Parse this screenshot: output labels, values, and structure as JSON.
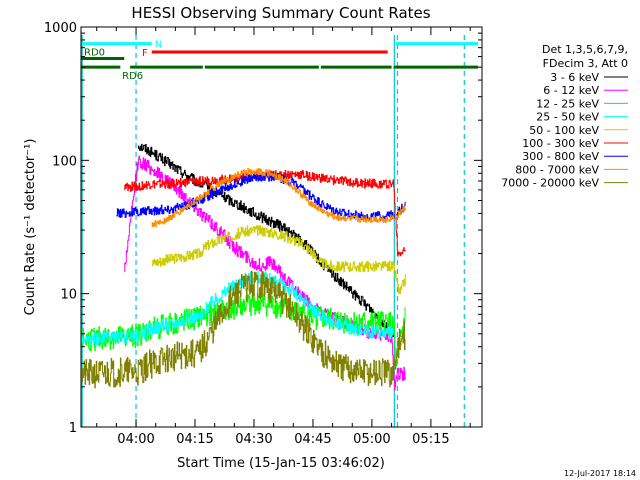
{
  "chart_data": {
    "type": "line",
    "title": "HESSI Observing Summary Count Rates",
    "xlabel": "Start Time (15-Jan-15 03:46:02)",
    "ylabel": "Count Rate (s⁻¹ detector⁻¹)",
    "y_scale": "log",
    "ylim": [
      1,
      1000
    ],
    "xlim_minutes": [
      226,
      328
    ],
    "x_ticks": [
      {
        "minutes": 240,
        "label": "04:00"
      },
      {
        "minutes": 255,
        "label": "04:15"
      },
      {
        "minutes": 270,
        "label": "04:30"
      },
      {
        "minutes": 285,
        "label": "04:45"
      },
      {
        "minutes": 300,
        "label": "05:00"
      },
      {
        "minutes": 315,
        "label": "05:15"
      }
    ],
    "y_ticks": [
      {
        "value": 1,
        "label": "1"
      },
      {
        "value": 10,
        "label": "10"
      },
      {
        "value": 100,
        "label": "100"
      },
      {
        "value": 1000,
        "label": "1000"
      }
    ],
    "legend": {
      "placement": "right",
      "header": [
        "Det 1,3,5,6,7,9,",
        "FDecim 3, Att 0"
      ]
    },
    "flags": [
      {
        "label": "N",
        "color": "#00ffff",
        "y": 750,
        "segments": [
          [
            226,
            244
          ],
          [
            306,
            327
          ]
        ]
      },
      {
        "label": "F",
        "color": "#ff0000",
        "y": 650,
        "segments": [
          [
            244,
            304
          ]
        ]
      },
      {
        "label": "RD0",
        "color": "#006400",
        "y": 580,
        "segments": [
          [
            226,
            237
          ]
        ]
      },
      {
        "label": "RD6",
        "color": "#006400",
        "y": 500,
        "segments": [
          [
            226,
            236
          ],
          [
            238.5,
            257
          ],
          [
            257.5,
            286.5
          ],
          [
            287,
            305
          ],
          [
            305.5,
            327
          ]
        ]
      }
    ],
    "vlines": [
      {
        "x": 240,
        "color": "#00cccc",
        "style": "dashed"
      },
      {
        "x": 306.5,
        "color": "#00cccc",
        "style": "dashed"
      },
      {
        "x": 323.5,
        "color": "#00cccc",
        "style": "dashed"
      },
      {
        "x": 226.3,
        "color": "#00cccc",
        "style": "solid"
      },
      {
        "x": 305.7,
        "color": "#00cccc",
        "style": "solid"
      }
    ],
    "series": [
      {
        "name": "3 - 6 keV",
        "color": "#000000",
        "noise": 0.04,
        "points": [
          [
            240.5,
            130
          ],
          [
            243,
            120
          ],
          [
            246,
            105
          ],
          [
            249,
            92
          ],
          [
            252,
            80
          ],
          [
            255,
            70
          ],
          [
            258,
            63
          ],
          [
            261,
            56
          ],
          [
            264,
            50
          ],
          [
            267,
            45
          ],
          [
            270,
            40
          ],
          [
            273,
            36
          ],
          [
            276,
            33
          ],
          [
            279,
            29
          ],
          [
            282,
            25
          ],
          [
            284.5,
            21
          ],
          [
            287,
            17
          ],
          [
            290,
            14
          ],
          [
            293,
            11.5
          ],
          [
            296,
            9.5
          ],
          [
            299,
            8
          ],
          [
            302,
            6.5
          ],
          [
            304.5,
            5.2
          ],
          [
            305.5,
            4.8
          ]
        ]
      },
      {
        "name": "6 - 12 keV",
        "color": "#ff00ff",
        "noise": 0.05,
        "points": [
          [
            237,
            15
          ],
          [
            240.5,
            100
          ],
          [
            243,
            90
          ],
          [
            246,
            78
          ],
          [
            249,
            66
          ],
          [
            252,
            55
          ],
          [
            255,
            45
          ],
          [
            258,
            36
          ],
          [
            260,
            32
          ],
          [
            262,
            28
          ],
          [
            264,
            24
          ],
          [
            266,
            21
          ],
          [
            268,
            19
          ],
          [
            270,
            17
          ],
          [
            272,
            16
          ],
          [
            274,
            17.5
          ],
          [
            276,
            15
          ],
          [
            278,
            13
          ],
          [
            280,
            11
          ],
          [
            282,
            9.5
          ],
          [
            284,
            8.5
          ],
          [
            286,
            7.5
          ],
          [
            288,
            7
          ],
          [
            290,
            6.5
          ],
          [
            293,
            6
          ],
          [
            296,
            5.5
          ],
          [
            299,
            5.2
          ],
          [
            302,
            5
          ],
          [
            305,
            4.8
          ],
          [
            305.8,
            2
          ],
          [
            306.5,
            2.5
          ],
          [
            308.5,
            2.5
          ]
        ]
      },
      {
        "name": "12 - 25 keV",
        "color": "#00ff00",
        "noise": 0.09,
        "points": [
          [
            226,
            4.5
          ],
          [
            240,
            4.8
          ],
          [
            244,
            5.5
          ],
          [
            250,
            6
          ],
          [
            255,
            6.5
          ],
          [
            258,
            7
          ],
          [
            262,
            7.5
          ],
          [
            266,
            8
          ],
          [
            270,
            8.5
          ],
          [
            274,
            8.2
          ],
          [
            278,
            7.6
          ],
          [
            282,
            7
          ],
          [
            286,
            6.6
          ],
          [
            290,
            6.3
          ],
          [
            294,
            6.1
          ],
          [
            298,
            6
          ],
          [
            302,
            6
          ],
          [
            305.5,
            6
          ],
          [
            306,
            3
          ],
          [
            308.5,
            7
          ]
        ]
      },
      {
        "name": "25 - 50 keV",
        "color": "#00ffff",
        "noise": 0.05,
        "points": [
          [
            226,
            4.5
          ],
          [
            240,
            4.8
          ],
          [
            244,
            5.5
          ],
          [
            248,
            5.8
          ],
          [
            253,
            6.5
          ],
          [
            257,
            6.8
          ],
          [
            258,
            8
          ],
          [
            261,
            9.5
          ],
          [
            264,
            11
          ],
          [
            267,
            12.5
          ],
          [
            270,
            13.5
          ],
          [
            273,
            13
          ],
          [
            276,
            12
          ],
          [
            279,
            11
          ],
          [
            282,
            9
          ],
          [
            285,
            7.5
          ],
          [
            288,
            6.5
          ],
          [
            291,
            6
          ],
          [
            295,
            5.5
          ],
          [
            300,
            5.2
          ],
          [
            305.5,
            5
          ]
        ]
      },
      {
        "name": "50 - 100 keV",
        "color": "#cccc00",
        "noise": 0.04,
        "points": [
          [
            244,
            17
          ],
          [
            248,
            18
          ],
          [
            252,
            19
          ],
          [
            256,
            20
          ],
          [
            258,
            23
          ],
          [
            261,
            25
          ],
          [
            264,
            27
          ],
          [
            267,
            29
          ],
          [
            270,
            30
          ],
          [
            273,
            29.5
          ],
          [
            276,
            28
          ],
          [
            279,
            26
          ],
          [
            282,
            24
          ],
          [
            285,
            20
          ],
          [
            287,
            17
          ],
          [
            290,
            16
          ],
          [
            294,
            16
          ],
          [
            298,
            16
          ],
          [
            302,
            16
          ],
          [
            305.5,
            16
          ],
          [
            307,
            10
          ],
          [
            308.5,
            13
          ]
        ]
      },
      {
        "name": "100 - 300 keV",
        "color": "#ff0000",
        "noise": 0.035,
        "points": [
          [
            237,
            62
          ],
          [
            240,
            64
          ],
          [
            244,
            66
          ],
          [
            248,
            66
          ],
          [
            252,
            68
          ],
          [
            256,
            70
          ],
          [
            258,
            70
          ],
          [
            262,
            72
          ],
          [
            266,
            74
          ],
          [
            270,
            76
          ],
          [
            274,
            77
          ],
          [
            278,
            78
          ],
          [
            282,
            78
          ],
          [
            286,
            74
          ],
          [
            290,
            71
          ],
          [
            294,
            69
          ],
          [
            298,
            67
          ],
          [
            302,
            67
          ],
          [
            305.5,
            67
          ],
          [
            306.5,
            20
          ],
          [
            308.5,
            21
          ]
        ]
      },
      {
        "name": "300 - 800 keV",
        "color": "#0000ff",
        "noise": 0.035,
        "points": [
          [
            235,
            40
          ],
          [
            240,
            41
          ],
          [
            244,
            42
          ],
          [
            248,
            43
          ],
          [
            252,
            45
          ],
          [
            256,
            50
          ],
          [
            260,
            57
          ],
          [
            264,
            65
          ],
          [
            268,
            72
          ],
          [
            272,
            76
          ],
          [
            276,
            75
          ],
          [
            280,
            68
          ],
          [
            284,
            55
          ],
          [
            288,
            45
          ],
          [
            292,
            40
          ],
          [
            296,
            38.5
          ],
          [
            300,
            38
          ],
          [
            304,
            38
          ],
          [
            306,
            40
          ],
          [
            308.5,
            46
          ]
        ]
      },
      {
        "name": "800 - 7000 keV",
        "color": "#ff8c00",
        "noise": 0.025,
        "points": [
          [
            244,
            33
          ],
          [
            247,
            35
          ],
          [
            250,
            39
          ],
          [
            253,
            45
          ],
          [
            256,
            52
          ],
          [
            259,
            60
          ],
          [
            262,
            68
          ],
          [
            265,
            76
          ],
          [
            268,
            82
          ],
          [
            271,
            83
          ],
          [
            274,
            80
          ],
          [
            277,
            73
          ],
          [
            280,
            63
          ],
          [
            283,
            52
          ],
          [
            286,
            44
          ],
          [
            289,
            39
          ],
          [
            292,
            37
          ],
          [
            296,
            36
          ],
          [
            300,
            36
          ],
          [
            304,
            36
          ],
          [
            306,
            38
          ],
          [
            308.5,
            44
          ]
        ]
      },
      {
        "name": "7000 - 20000 keV",
        "color": "#808000",
        "noise": 0.11,
        "points": [
          [
            226,
            2.5
          ],
          [
            240,
            2.6
          ],
          [
            244,
            3
          ],
          [
            248,
            3.3
          ],
          [
            252,
            3.5
          ],
          [
            256,
            3.6
          ],
          [
            258,
            4.5
          ],
          [
            261,
            6.5
          ],
          [
            264,
            9
          ],
          [
            267,
            11
          ],
          [
            270,
            12
          ],
          [
            273,
            11.5
          ],
          [
            276,
            10
          ],
          [
            279,
            8
          ],
          [
            282,
            6
          ],
          [
            285,
            4.5
          ],
          [
            288,
            3.5
          ],
          [
            292,
            2.8
          ],
          [
            298,
            2.6
          ],
          [
            305.5,
            2.5
          ],
          [
            306.5,
            4
          ],
          [
            308.5,
            5
          ]
        ]
      }
    ]
  },
  "footer_timestamp": "12-Jul-2017 18:14"
}
